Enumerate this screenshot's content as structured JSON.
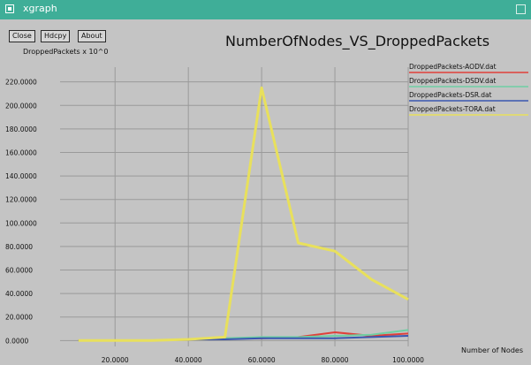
{
  "window": {
    "title": "xgraph"
  },
  "toolbar": {
    "close_label": "Close",
    "hdcpy_label": "Hdcpy",
    "about_label": "About"
  },
  "plot_title": "NumberOfNodes_VS_DroppedPackets",
  "y_unit_label": "DroppedPackets x 10^0",
  "x_unit_label": "Number of Nodes",
  "colors": {
    "titlebar": "#3fae98",
    "background": "#c4c4c4",
    "grid": "#9a9a9a",
    "axis": "#222222"
  },
  "chart_data": {
    "type": "line",
    "title": "NumberOfNodes_VS_DroppedPackets",
    "xlabel": "Number of Nodes",
    "ylabel": "DroppedPackets x 10^0",
    "xlim": [
      5,
      100
    ],
    "ylim": [
      -5,
      225
    ],
    "x_ticks": [
      20,
      40,
      60,
      80,
      100
    ],
    "x_tick_labels": [
      "20.0000",
      "40.0000",
      "60.0000",
      "80.0000",
      "100.0000"
    ],
    "y_ticks": [
      0,
      20,
      40,
      60,
      80,
      100,
      120,
      140,
      160,
      180,
      200,
      220
    ],
    "y_tick_labels": [
      "0.0000",
      "20.0000",
      "40.0000",
      "60.0000",
      "80.0000",
      "100.0000",
      "120.0000",
      "140.0000",
      "160.0000",
      "180.0000",
      "200.0000",
      "220.0000"
    ],
    "grid": true,
    "legend_position": "right",
    "series": [
      {
        "name": "DroppedPackets-AODV.dat",
        "color": "#e0403a",
        "x": [
          10,
          20,
          30,
          40,
          50,
          60,
          70,
          80,
          90,
          100
        ],
        "y": [
          0,
          0,
          0,
          1,
          2,
          2,
          3,
          7,
          4,
          6
        ]
      },
      {
        "name": "DroppedPackets-DSDV.dat",
        "color": "#6fcfa3",
        "x": [
          10,
          20,
          30,
          40,
          50,
          60,
          70,
          80,
          90,
          100
        ],
        "y": [
          0,
          0,
          0,
          1,
          2,
          3,
          3,
          4,
          5,
          9
        ]
      },
      {
        "name": "DroppedPackets-DSR.dat",
        "color": "#3a56b0",
        "x": [
          10,
          20,
          30,
          40,
          50,
          60,
          70,
          80,
          90,
          100
        ],
        "y": [
          0,
          0,
          0,
          1,
          1,
          2,
          2,
          2,
          3,
          4
        ]
      },
      {
        "name": "DroppedPackets-TORA.dat",
        "color": "#e8e05c",
        "x": [
          10,
          20,
          30,
          40,
          50,
          60,
          70,
          80,
          90,
          100
        ],
        "y": [
          0,
          0,
          0,
          1,
          3,
          215,
          83,
          76,
          52,
          35
        ]
      }
    ]
  }
}
